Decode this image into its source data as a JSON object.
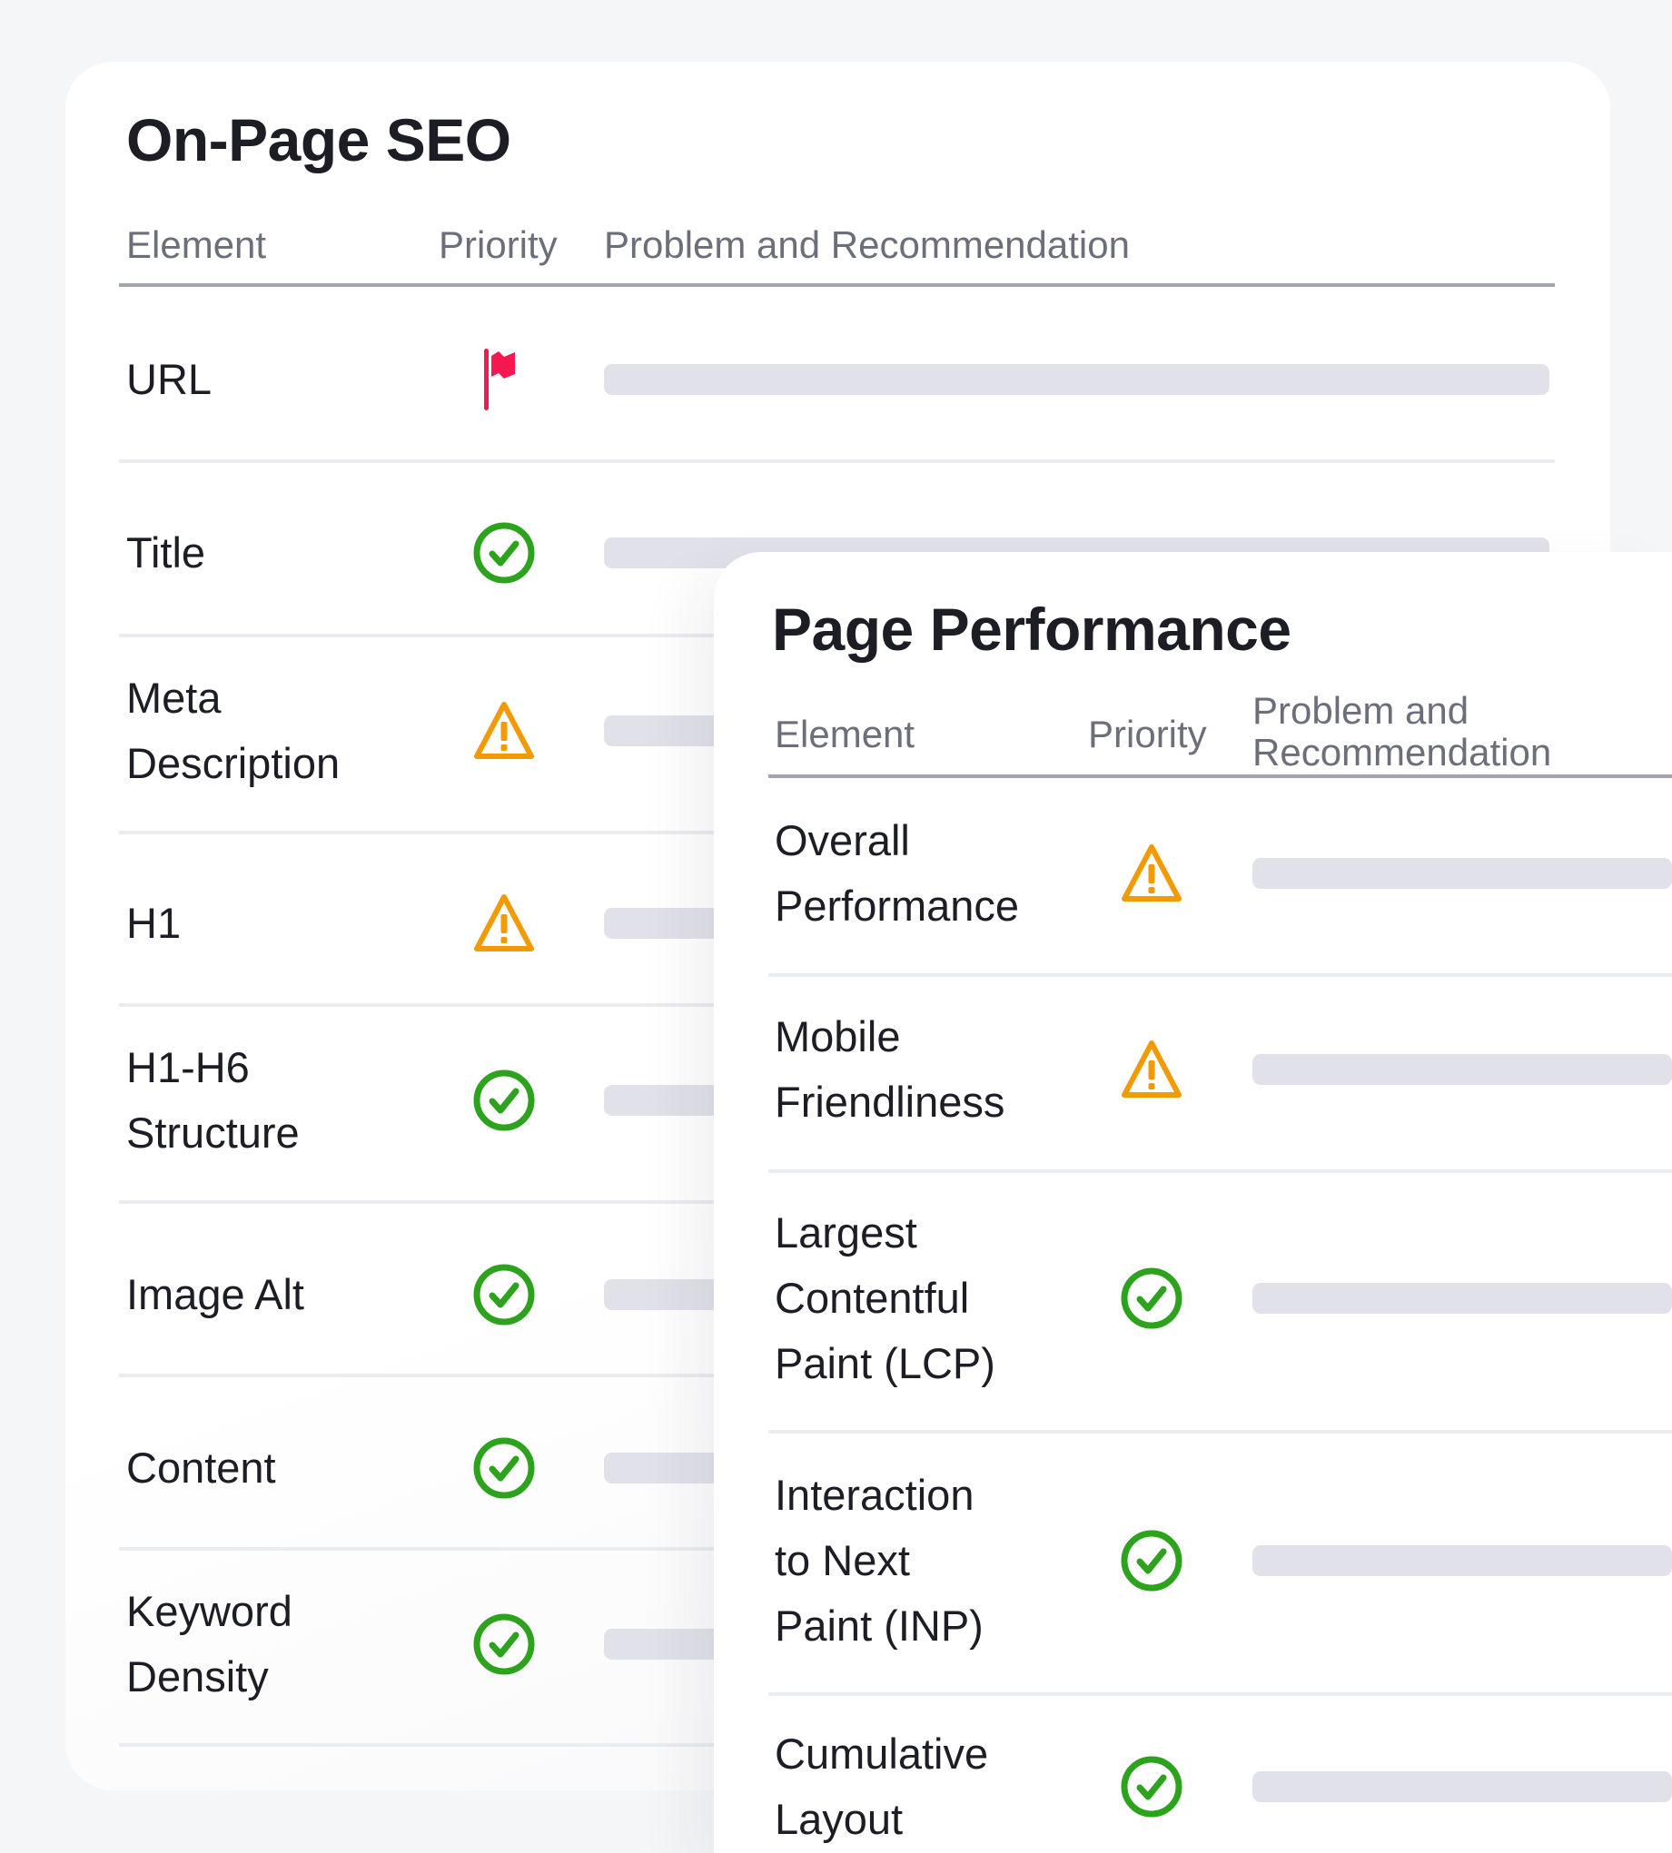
{
  "colors": {
    "flag": "#f5174f",
    "check": "#2ca21d",
    "warning": "#f29a04",
    "placeholder_bar": "#e0e1e9"
  },
  "seo": {
    "title": "On-Page SEO",
    "columns": {
      "element": "Element",
      "priority": "Priority",
      "problem": "Problem and Recommendation"
    },
    "rows": [
      {
        "element": "URL",
        "priority": "flag-icon"
      },
      {
        "element": "Title",
        "priority": "check-icon"
      },
      {
        "element": "Meta\nDescription",
        "priority": "warning-icon"
      },
      {
        "element": "H1",
        "priority": "warning-icon"
      },
      {
        "element": "H1-H6\nStructure",
        "priority": "check-icon"
      },
      {
        "element": "Image Alt",
        "priority": "check-icon"
      },
      {
        "element": "Content",
        "priority": "check-icon"
      },
      {
        "element": "Keyword\nDensity",
        "priority": "check-icon"
      }
    ]
  },
  "performance": {
    "title": "Page Performance",
    "columns": {
      "element": "Element",
      "priority": "Priority",
      "problem": "Problem and Recommendation"
    },
    "rows": [
      {
        "element": "Overall\nPerformance",
        "priority": "warning-icon"
      },
      {
        "element": "Mobile\nFriendliness",
        "priority": "warning-icon"
      },
      {
        "element": "Largest\nContentful\nPaint (LCP)",
        "priority": "check-icon"
      },
      {
        "element": "Interaction\nto Next\nPaint (INP)",
        "priority": "check-icon"
      },
      {
        "element": "Cumulative\nLayout",
        "priority": "check-icon"
      }
    ]
  }
}
